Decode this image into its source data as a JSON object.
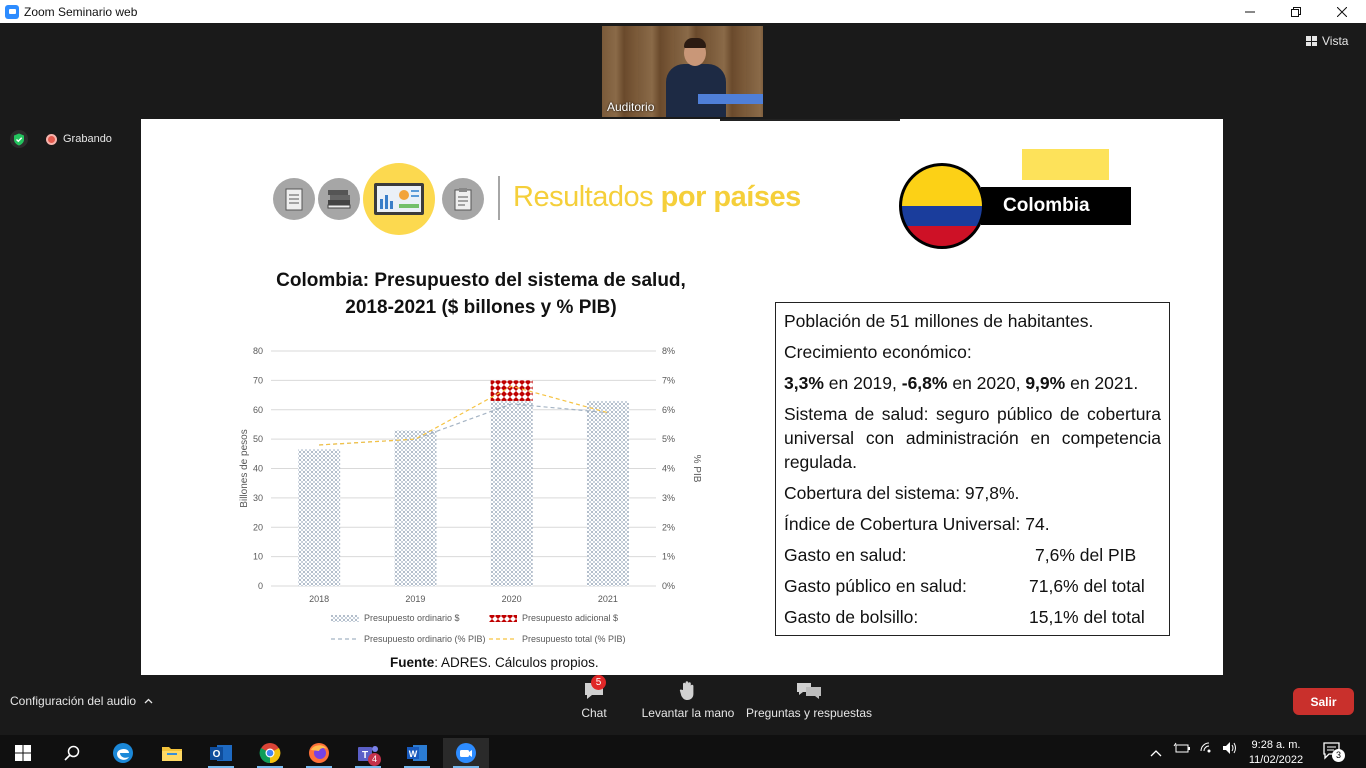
{
  "window": {
    "title": "Zoom Seminario web"
  },
  "top_controls": {
    "view_label": "Vista"
  },
  "participant": {
    "name": "Auditorio"
  },
  "recording": {
    "label": "Grabando"
  },
  "slide": {
    "heading_light": "Resultados ",
    "heading_bold": "por países",
    "country_label": "Colombia",
    "chart_title_line1": "Colombia: Presupuesto del sistema de salud,",
    "chart_title_line2": "2018-2021 ($ billones y % PIB)",
    "info": {
      "line1": "Población de 51 millones de habitantes.",
      "line2": "Crecimiento económico:",
      "growth": {
        "v2019": "3,3%",
        "t2019": " en 2019, ",
        "v2020": "-6,8%",
        "t2020": " en 2020, ",
        "v2021": "9,9%",
        "t2021": " en 2021."
      },
      "line4": "Sistema de salud: seguro público de cobertura universal con administración en competencia regulada.",
      "line5": "Cobertura del sistema: 97,8%.",
      "line6": "Índice de Cobertura Universal: 74.",
      "rows": [
        {
          "k": "Gasto en salud:",
          "v": "7,6% del PIB"
        },
        {
          "k": "Gasto público en salud:",
          "v": "71,6% del total"
        },
        {
          "k": "Gasto de bolsillo:",
          "v": "15,1%  del total"
        }
      ]
    },
    "source_label": "Fuente",
    "source_text": ":  ADRES. Cálculos propios."
  },
  "chart_data": {
    "type": "bar",
    "categories": [
      "2018",
      "2019",
      "2020",
      "2021"
    ],
    "series": [
      {
        "name": "Presupuesto ordinario $",
        "kind": "bar",
        "values": [
          46.5,
          53,
          63,
          63
        ],
        "color": "#8497b0"
      },
      {
        "name": "Presupuesto adicional $",
        "kind": "bar-stacked",
        "values": [
          0,
          0,
          7,
          0
        ],
        "color": "#c00000"
      },
      {
        "name": "Presupuesto ordinario (% PIB)",
        "kind": "line-secondary",
        "values": [
          4.8,
          5.0,
          6.2,
          5.9
        ],
        "color": "#a5b4c4"
      },
      {
        "name": "Presupuesto total (% PIB)",
        "kind": "line-secondary",
        "values": [
          4.8,
          5.0,
          6.8,
          5.9
        ],
        "color": "#f6c342"
      }
    ],
    "ylabel": "Billones de pesos",
    "y2label": "% PIB",
    "ylim": [
      0,
      80
    ],
    "y2lim": [
      0,
      8
    ],
    "yticks": [
      "0",
      "10",
      "20",
      "30",
      "40",
      "50",
      "60",
      "70",
      "80"
    ],
    "y2ticks": [
      "0%",
      "1%",
      "2%",
      "3%",
      "4%",
      "5%",
      "6%",
      "7%",
      "8%"
    ],
    "grid": true,
    "legend_position": "bottom"
  },
  "toolbar": {
    "audio_label": "Configuración del audio",
    "chat_label": "Chat",
    "chat_badge": "5",
    "raise_hand_label": "Levantar la mano",
    "qa_label": "Preguntas y respuestas",
    "leave_label": "Salir"
  },
  "taskbar": {
    "time": "9:28 a. m.",
    "date": "11/02/2022",
    "teams_badge": "4",
    "notif_count": "3"
  }
}
